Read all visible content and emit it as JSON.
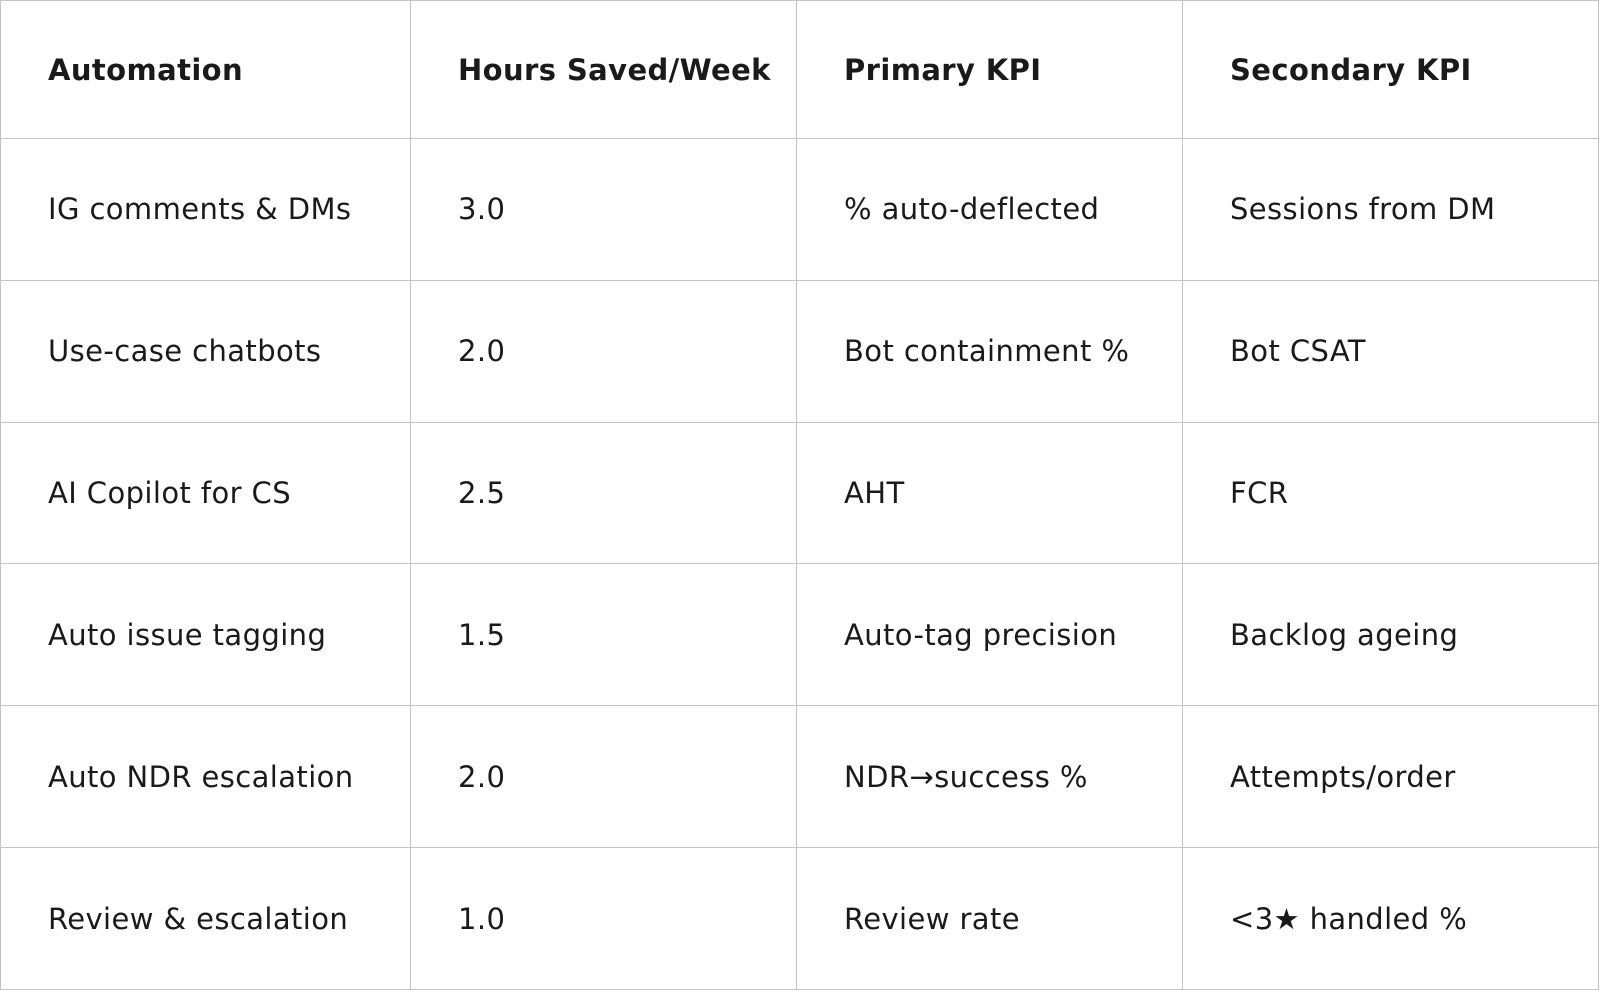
{
  "table": {
    "headers": [
      "Automation",
      "Hours Saved/Week",
      "Primary KPI",
      "Secondary KPI"
    ],
    "rows": [
      [
        "IG comments & DMs",
        "3.0",
        "% auto-deflected",
        "Sessions from DM"
      ],
      [
        "Use-case chatbots",
        "2.0",
        "Bot containment %",
        "Bot CSAT"
      ],
      [
        "AI Copilot for CS",
        "2.5",
        "AHT",
        "FCR"
      ],
      [
        "Auto issue tagging",
        "1.5",
        "Auto-tag precision",
        "Backlog ageing"
      ],
      [
        "Auto NDR escalation",
        "2.0",
        "NDR→success %",
        "Attempts/order"
      ],
      [
        "Review & escalation",
        "1.0",
        "Review rate",
        "<3★ handled %"
      ]
    ]
  }
}
